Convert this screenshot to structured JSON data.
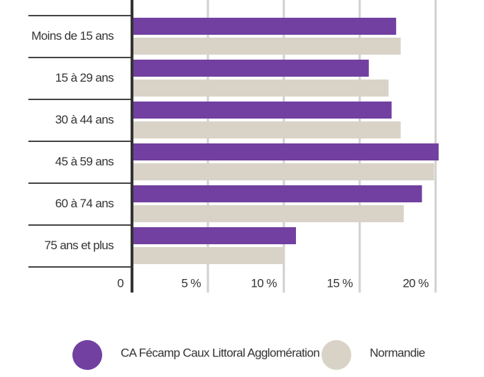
{
  "chart_data": {
    "type": "barh",
    "categories": [
      "Moins de 15 ans",
      "15 à 29 ans",
      "30 à 44 ans",
      "45 à 59 ans",
      "60 à 74 ans",
      "75 ans et plus"
    ],
    "series": [
      {
        "name": "CA Fécamp Caux Littoral Agglomération",
        "color": "#7140a0",
        "values": [
          17.4,
          15.6,
          17.1,
          20.2,
          19.1,
          10.8
        ]
      },
      {
        "name": "Normandie",
        "color": "#d9d3c7",
        "values": [
          17.7,
          16.9,
          17.7,
          19.9,
          17.9,
          10.0
        ]
      }
    ],
    "xlim": [
      0,
      23
    ],
    "xticks": [
      0,
      {
        "value": 5,
        "label": "5 %"
      },
      {
        "value": 10,
        "label": "10 %"
      },
      {
        "value": 15,
        "label": "15 %"
      },
      {
        "value": 20,
        "label": "20 %"
      }
    ],
    "grid": true
  }
}
